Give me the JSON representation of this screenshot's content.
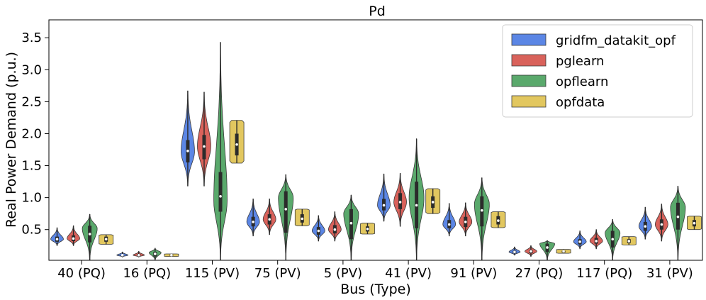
{
  "chart_data": {
    "type": "violin",
    "title": "Pd",
    "xlabel": "Bus (Type)",
    "ylabel": "Real Power Demand (p.u.)",
    "ylim": [
      0.02,
      3.78
    ],
    "yticks": [
      0.5,
      1.0,
      1.5,
      2.0,
      2.5,
      3.0,
      3.5
    ],
    "ytick_labels": [
      "0.5",
      "1.0",
      "1.5",
      "2.0",
      "2.5",
      "3.0",
      "3.5"
    ],
    "categories": [
      "40 (PQ)",
      "16 (PQ)",
      "115 (PV)",
      "75 (PV)",
      "5 (PV)",
      "41 (PV)",
      "91 (PV)",
      "27 (PQ)",
      "117 (PQ)",
      "31 (PV)"
    ],
    "legend_position": "top-right",
    "series": [
      {
        "name": "gridfm_datakit_opf",
        "color": "#5b86e5",
        "violins": [
          {
            "min": 0.25,
            "q1": 0.31,
            "median": 0.35,
            "q3": 0.39,
            "max": 0.53,
            "peak": 0.35,
            "width": 0.85
          },
          {
            "min": 0.07,
            "q1": 0.09,
            "median": 0.1,
            "q3": 0.11,
            "max": 0.15,
            "peak": 0.1,
            "width": 0.75
          },
          {
            "min": 1.18,
            "q1": 1.55,
            "median": 1.73,
            "q3": 1.9,
            "max": 2.67,
            "peak": 1.72,
            "width": 0.9
          },
          {
            "min": 0.4,
            "q1": 0.55,
            "median": 0.62,
            "q3": 0.7,
            "max": 0.98,
            "peak": 0.62,
            "width": 0.85
          },
          {
            "min": 0.32,
            "q1": 0.42,
            "median": 0.48,
            "q3": 0.54,
            "max": 0.72,
            "peak": 0.48,
            "width": 0.85
          },
          {
            "min": 0.63,
            "q1": 0.8,
            "median": 0.88,
            "q3": 0.98,
            "max": 1.37,
            "peak": 0.88,
            "width": 0.85
          },
          {
            "min": 0.4,
            "q1": 0.52,
            "median": 0.58,
            "q3": 0.65,
            "max": 0.91,
            "peak": 0.58,
            "width": 0.85
          },
          {
            "min": 0.1,
            "q1": 0.13,
            "median": 0.15,
            "q3": 0.17,
            "max": 0.23,
            "peak": 0.15,
            "width": 0.75
          },
          {
            "min": 0.2,
            "q1": 0.27,
            "median": 0.31,
            "q3": 0.35,
            "max": 0.48,
            "peak": 0.31,
            "width": 0.85
          },
          {
            "min": 0.35,
            "q1": 0.48,
            "median": 0.55,
            "q3": 0.62,
            "max": 0.85,
            "peak": 0.55,
            "width": 0.85
          }
        ]
      },
      {
        "name": "pglearn",
        "color": "#d9625b",
        "violins": [
          {
            "min": 0.25,
            "q1": 0.32,
            "median": 0.36,
            "q3": 0.41,
            "max": 0.56,
            "peak": 0.36,
            "width": 0.85
          },
          {
            "min": 0.07,
            "q1": 0.09,
            "median": 0.1,
            "q3": 0.12,
            "max": 0.16,
            "peak": 0.1,
            "width": 0.75
          },
          {
            "min": 1.18,
            "q1": 1.6,
            "median": 1.8,
            "q3": 1.98,
            "max": 2.65,
            "peak": 1.8,
            "width": 0.9
          },
          {
            "min": 0.42,
            "q1": 0.58,
            "median": 0.66,
            "q3": 0.74,
            "max": 0.98,
            "peak": 0.66,
            "width": 0.85
          },
          {
            "min": 0.32,
            "q1": 0.44,
            "median": 0.5,
            "q3": 0.57,
            "max": 0.78,
            "peak": 0.5,
            "width": 0.85
          },
          {
            "min": 0.55,
            "q1": 0.82,
            "median": 0.93,
            "q3": 1.07,
            "max": 1.38,
            "peak": 0.93,
            "width": 0.85
          },
          {
            "min": 0.4,
            "q1": 0.54,
            "median": 0.62,
            "q3": 0.7,
            "max": 0.92,
            "peak": 0.62,
            "width": 0.85
          },
          {
            "min": 0.08,
            "q1": 0.13,
            "median": 0.16,
            "q3": 0.18,
            "max": 0.25,
            "peak": 0.16,
            "width": 0.8
          },
          {
            "min": 0.2,
            "q1": 0.28,
            "median": 0.32,
            "q3": 0.37,
            "max": 0.5,
            "peak": 0.32,
            "width": 0.85
          },
          {
            "min": 0.32,
            "q1": 0.5,
            "median": 0.58,
            "q3": 0.66,
            "max": 0.9,
            "peak": 0.58,
            "width": 0.85
          }
        ]
      },
      {
        "name": "opflearn",
        "color": "#5aa96c",
        "violins": [
          {
            "min": 0.02,
            "q1": 0.3,
            "median": 0.43,
            "q3": 0.56,
            "max": 0.74,
            "peak": 0.52,
            "width": 1.0
          },
          {
            "min": 0.02,
            "q1": 0.08,
            "median": 0.12,
            "q3": 0.15,
            "max": 0.21,
            "peak": 0.14,
            "width": 0.8
          },
          {
            "min": 0.02,
            "q1": 0.78,
            "median": 1.02,
            "q3": 1.4,
            "max": 3.43,
            "peak": 0.95,
            "width": 0.9
          },
          {
            "min": 0.02,
            "q1": 0.45,
            "median": 0.82,
            "q3": 1.1,
            "max": 1.36,
            "peak": 1.0,
            "width": 1.0
          },
          {
            "min": 0.02,
            "q1": 0.35,
            "median": 0.6,
            "q3": 0.82,
            "max": 1.04,
            "peak": 0.75,
            "width": 1.0
          },
          {
            "min": 0.02,
            "q1": 0.52,
            "median": 0.88,
            "q3": 1.25,
            "max": 1.92,
            "peak": 1.0,
            "width": 1.0
          },
          {
            "min": 0.02,
            "q1": 0.55,
            "median": 0.8,
            "q3": 1.02,
            "max": 1.31,
            "peak": 0.9,
            "width": 1.0
          },
          {
            "min": 0.02,
            "q1": 0.15,
            "median": 0.22,
            "q3": 0.28,
            "max": 0.33,
            "peak": 0.28,
            "width": 1.0
          },
          {
            "min": 0.02,
            "q1": 0.22,
            "median": 0.35,
            "q3": 0.48,
            "max": 0.66,
            "peak": 0.45,
            "width": 1.0
          },
          {
            "min": 0.02,
            "q1": 0.5,
            "median": 0.7,
            "q3": 0.92,
            "max": 1.18,
            "peak": 0.85,
            "width": 1.0
          }
        ]
      },
      {
        "name": "opfdata",
        "color": "#e2c75f",
        "violins": [
          {
            "min": 0.27,
            "q1": 0.31,
            "median": 0.35,
            "q3": 0.39,
            "max": 0.42,
            "peak": 0.35,
            "width": 0.95,
            "flat": true
          },
          {
            "min": 0.08,
            "q1": 0.09,
            "median": 0.1,
            "q3": 0.11,
            "max": 0.12,
            "peak": 0.1,
            "width": 0.95,
            "flat": true
          },
          {
            "min": 1.54,
            "q1": 1.66,
            "median": 1.83,
            "q3": 2.0,
            "max": 2.21,
            "peak": 1.83,
            "width": 0.95,
            "flat": true
          },
          {
            "min": 0.56,
            "q1": 0.61,
            "median": 0.67,
            "q3": 0.74,
            "max": 0.82,
            "peak": 0.67,
            "width": 0.95,
            "flat": true
          },
          {
            "min": 0.43,
            "q1": 0.47,
            "median": 0.51,
            "q3": 0.55,
            "max": 0.6,
            "peak": 0.51,
            "width": 0.95,
            "flat": true
          },
          {
            "min": 0.75,
            "q1": 0.84,
            "median": 0.93,
            "q3": 1.02,
            "max": 1.14,
            "peak": 0.93,
            "width": 0.95,
            "flat": true
          },
          {
            "min": 0.53,
            "q1": 0.58,
            "median": 0.64,
            "q3": 0.71,
            "max": 0.78,
            "peak": 0.64,
            "width": 0.95,
            "flat": true
          },
          {
            "min": 0.13,
            "q1": 0.14,
            "median": 0.16,
            "q3": 0.17,
            "max": 0.19,
            "peak": 0.16,
            "width": 0.95,
            "flat": true
          },
          {
            "min": 0.26,
            "q1": 0.29,
            "median": 0.32,
            "q3": 0.35,
            "max": 0.39,
            "peak": 0.32,
            "width": 0.95,
            "flat": true
          },
          {
            "min": 0.5,
            "q1": 0.55,
            "median": 0.6,
            "q3": 0.65,
            "max": 0.71,
            "peak": 0.6,
            "width": 0.95,
            "flat": true
          }
        ]
      }
    ]
  }
}
